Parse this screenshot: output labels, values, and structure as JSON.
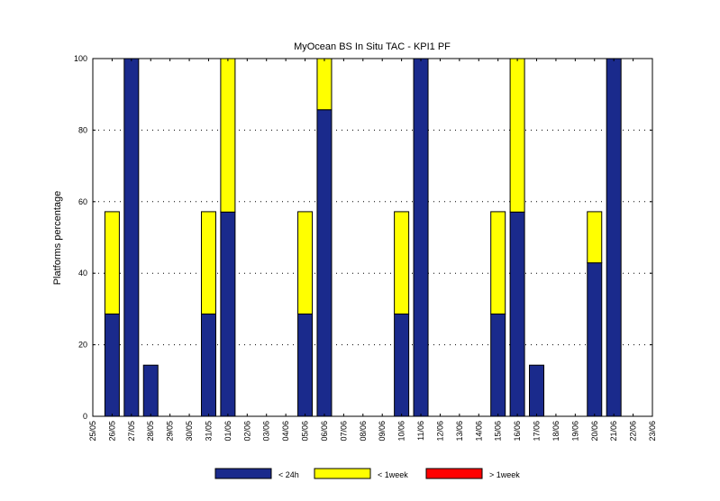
{
  "chart_data": {
    "type": "bar",
    "stacked": true,
    "title": "MyOcean  BS In Situ TAC - KPI1  PF",
    "xlabel": "",
    "ylabel": "Platforms percentage",
    "ylim": [
      0,
      100
    ],
    "yticks": [
      0,
      20,
      40,
      60,
      80,
      100
    ],
    "grid": "horizontal dotted",
    "legend_position": "bottom",
    "categories": [
      "25/05",
      "26/05",
      "27/05",
      "28/05",
      "29/05",
      "30/05",
      "31/05",
      "01/06",
      "02/06",
      "03/06",
      "04/06",
      "05/06",
      "06/06",
      "07/06",
      "08/06",
      "09/06",
      "10/06",
      "11/06",
      "12/06",
      "13/06",
      "14/06",
      "15/06",
      "16/06",
      "17/06",
      "18/06",
      "19/06",
      "20/06",
      "21/06",
      "22/06",
      "23/06"
    ],
    "series": [
      {
        "name": "< 24h",
        "color": "#1a2a8c",
        "values": [
          null,
          28.6,
          100,
          14.3,
          null,
          null,
          28.6,
          57.1,
          null,
          null,
          null,
          28.6,
          85.7,
          null,
          null,
          null,
          28.6,
          100,
          null,
          null,
          null,
          28.6,
          57.1,
          14.3,
          null,
          null,
          42.9,
          100,
          null,
          null
        ]
      },
      {
        "name": "< 1week",
        "color": "#ffff00",
        "values": [
          null,
          28.6,
          0,
          0,
          null,
          null,
          28.6,
          42.9,
          null,
          null,
          null,
          28.6,
          14.3,
          null,
          null,
          null,
          28.6,
          0,
          null,
          null,
          null,
          28.6,
          42.9,
          0,
          null,
          null,
          14.3,
          0,
          null,
          null
        ]
      },
      {
        "name": "> 1week",
        "color": "#ff0000",
        "values": [
          null,
          0,
          0,
          0,
          null,
          null,
          0,
          0,
          null,
          null,
          null,
          0,
          0,
          null,
          null,
          null,
          0,
          0,
          null,
          null,
          null,
          0,
          0,
          0,
          null,
          null,
          0,
          0,
          null,
          null
        ]
      }
    ]
  }
}
